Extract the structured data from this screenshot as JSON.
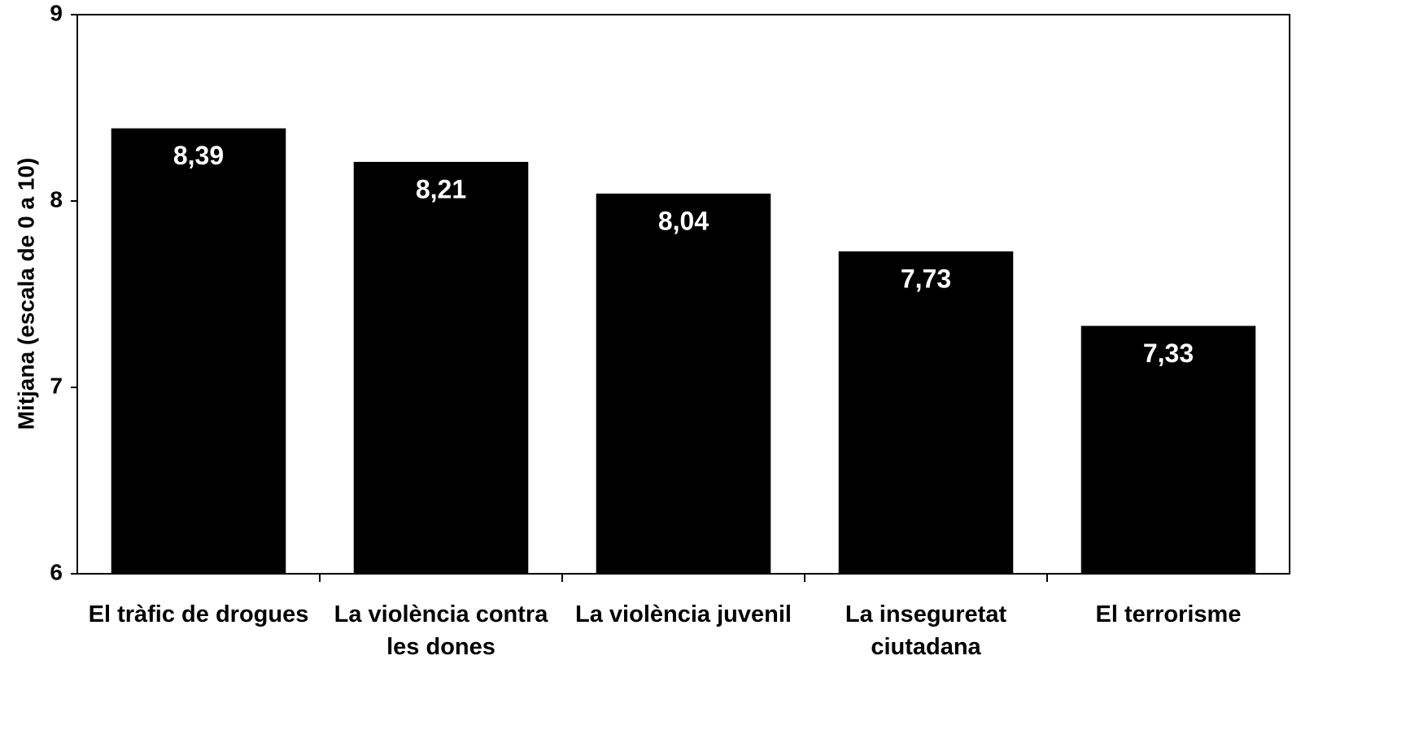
{
  "chart_data": {
    "type": "bar",
    "y_label": "Mitjana (escala de 0 a 10)",
    "categories": [
      "El tràfic de drogues",
      "La violència contra les dones",
      "La violència juvenil",
      "La inseguretat ciutadana",
      "El terrorisme"
    ],
    "values": [
      8.39,
      8.21,
      8.04,
      7.73,
      7.33
    ],
    "value_labels": [
      "8,39",
      "8,21",
      "8,04",
      "7,73",
      "7,33"
    ],
    "color": "#000000",
    "ylim": [
      6,
      9
    ],
    "yticks": [
      6,
      7,
      8,
      9
    ]
  }
}
